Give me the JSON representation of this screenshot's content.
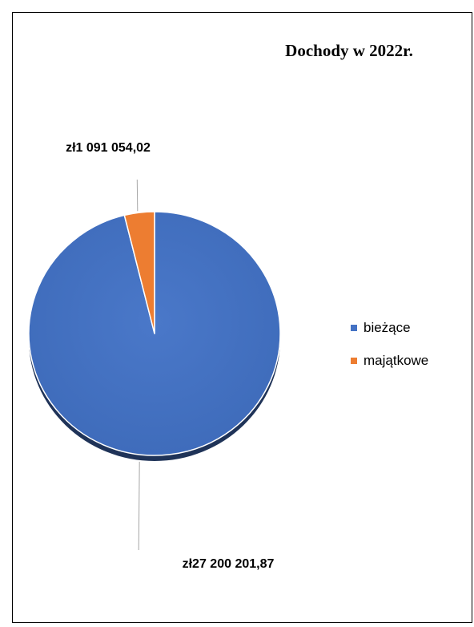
{
  "chart_data": {
    "type": "pie",
    "title": "Dochody w 2022r.",
    "categories": [
      "bieżące",
      "majątkowe"
    ],
    "values": [
      27200201.87,
      1091054.02
    ],
    "data_labels": [
      "zł27 200 201,87",
      "zł1 091 054,02"
    ],
    "colors": [
      "#4472C4",
      "#ED7D31"
    ],
    "legend_position": "right",
    "style": "3d"
  }
}
